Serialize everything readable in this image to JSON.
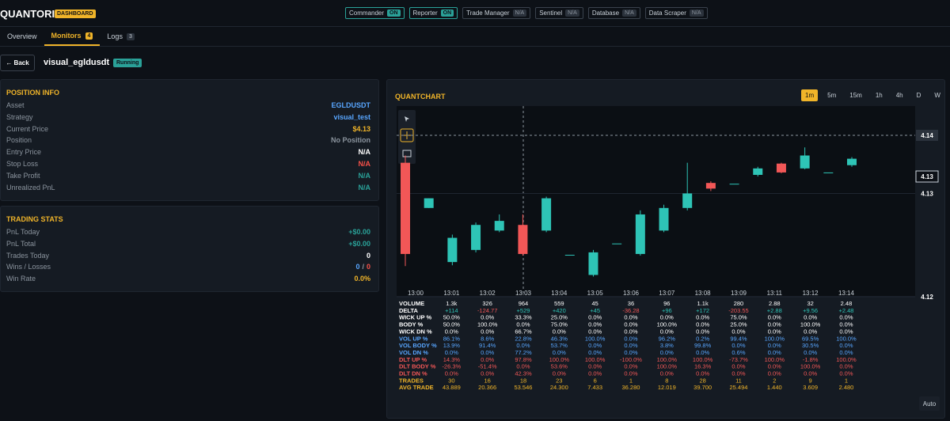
{
  "header": {
    "brand": "QUANTORIUS",
    "badge": "DASHBOARD",
    "services": [
      {
        "name": "Commander",
        "status": "ON"
      },
      {
        "name": "Reporter",
        "status": "ON"
      },
      {
        "name": "Trade Manager",
        "status": "N/A"
      },
      {
        "name": "Sentinel",
        "status": "N/A"
      },
      {
        "name": "Database",
        "status": "N/A"
      },
      {
        "name": "Data Scraper",
        "status": "N/A"
      }
    ]
  },
  "tabs": [
    {
      "label": "Overview"
    },
    {
      "label": "Monitors",
      "count": "4"
    },
    {
      "label": "Logs",
      "count": "3"
    }
  ],
  "toolbar": {
    "back": "Back",
    "monitor": "visual_egldusdt",
    "status": "Running"
  },
  "position_info": {
    "title": "POSITION INFO",
    "rows": [
      {
        "label": "Asset",
        "value": "EGLDUSDT"
      },
      {
        "label": "Strategy",
        "value": "visual_test"
      },
      {
        "label": "Current Price",
        "value": "$4.13"
      },
      {
        "label": "Position",
        "value": "No Position"
      },
      {
        "label": "Entry Price",
        "value": "N/A"
      },
      {
        "label": "Stop Loss",
        "value": "N/A"
      },
      {
        "label": "Take Profit",
        "value": "N/A"
      },
      {
        "label": "Unrealized PnL",
        "value": "N/A"
      }
    ]
  },
  "trading_stats": {
    "title": "TRADING STATS",
    "rows": [
      {
        "label": "PnL Today",
        "value": "+$0.00"
      },
      {
        "label": "PnL Total",
        "value": "+$0.00"
      },
      {
        "label": "Trades Today",
        "value": "0"
      },
      {
        "label": "Wins / Losses",
        "wins": "0",
        "sep": "/",
        "losses": "0"
      },
      {
        "label": "Win Rate",
        "value": "0.0%"
      }
    ]
  },
  "quantchart": {
    "title": "QUANTCHART",
    "timeframes": [
      "1m",
      "5m",
      "15m",
      "1h",
      "4h",
      "D",
      "W"
    ],
    "active_timeframe": 0,
    "price_ticks": [
      {
        "value": 4.14,
        "label": "4.14"
      },
      {
        "value": 4.1328,
        "label": "4.13"
      },
      {
        "value": 4.12,
        "label": "4.12"
      }
    ],
    "last_price": {
      "value": 4.1349,
      "label": "4.13"
    },
    "times": [
      "13:00",
      "13:01",
      "13:02",
      "13:03",
      "13:04",
      "13:05",
      "13:06",
      "13:07",
      "13:08",
      "13:09",
      "13:11",
      "13:12",
      "13:14"
    ],
    "candles": [
      {
        "o": 4.1366,
        "h": 4.1375,
        "l": 4.1238,
        "c": 4.1253
      },
      {
        "o": 4.131,
        "h": 4.1322,
        "l": 4.131,
        "c": 4.1322
      },
      {
        "o": 4.1243,
        "h": 4.1277,
        "l": 4.1239,
        "c": 4.1273
      },
      {
        "o": 4.1258,
        "h": 4.1292,
        "l": 4.1255,
        "c": 4.1289
      },
      {
        "o": 4.1282,
        "h": 4.1302,
        "l": 4.128,
        "c": 4.1294
      },
      {
        "o": 4.1289,
        "h": 4.1302,
        "l": 4.1251,
        "c": 4.1253
      },
      {
        "o": 4.1282,
        "h": 4.1324,
        "l": 4.128,
        "c": 4.1322
      },
      {
        "o": 4.1252,
        "h": 4.1252,
        "l": 4.1252,
        "c": 4.1252
      },
      {
        "o": 4.1227,
        "h": 4.1258,
        "l": 4.1225,
        "c": 4.1255
      },
      {
        "o": 4.1266,
        "h": 4.1266,
        "l": 4.1266,
        "c": 4.1266
      },
      {
        "o": 4.1253,
        "h": 4.1307,
        "l": 4.1251,
        "c": 4.1302
      },
      {
        "o": 4.1282,
        "h": 4.1314,
        "l": 4.128,
        "c": 4.131
      },
      {
        "o": 4.131,
        "h": 4.1366,
        "l": 4.1307,
        "c": 4.1328
      },
      {
        "o": 4.1341,
        "h": 4.1343,
        "l": 4.1331,
        "c": 4.1334
      },
      {
        "o": 4.134,
        "h": 4.134,
        "l": 4.134,
        "c": 4.134
      },
      {
        "o": 4.1351,
        "h": 4.1361,
        "l": 4.1349,
        "c": 4.1359
      },
      {
        "o": 4.1365,
        "h": 4.1366,
        "l": 4.1353,
        "c": 4.1354
      },
      {
        "o": 4.1359,
        "h": 4.1385,
        "l": 4.1358,
        "c": 4.1375
      },
      {
        "o": 4.1354,
        "h": 4.1354,
        "l": 4.1354,
        "c": 4.1354
      },
      {
        "o": 4.1363,
        "h": 4.1373,
        "l": 4.1361,
        "c": 4.1371
      }
    ],
    "table": [
      {
        "label": "VOLUME",
        "cells": [
          "1.3k",
          "326",
          "964",
          "559",
          "45",
          "36",
          "96",
          "1.1k",
          "280",
          "2.88",
          "32",
          "2.48"
        ]
      },
      {
        "label": "DELTA",
        "cells": [
          "+114",
          "-124.77",
          "+529",
          "+420",
          "+45",
          "-36.28",
          "+96",
          "+172",
          "-203.55",
          "+2.88",
          "+9.56",
          "+2.48"
        ]
      },
      {
        "label": "WICK UP %",
        "cells": [
          "50.0%",
          "0.0%",
          "33.3%",
          "25.0%",
          "0.0%",
          "0.0%",
          "0.0%",
          "0.0%",
          "75.0%",
          "0.0%",
          "0.0%",
          "0.0%"
        ]
      },
      {
        "label": "BODY %",
        "cells": [
          "50.0%",
          "100.0%",
          "0.0%",
          "75.0%",
          "0.0%",
          "0.0%",
          "100.0%",
          "0.0%",
          "25.0%",
          "0.0%",
          "100.0%",
          "0.0%"
        ]
      },
      {
        "label": "WICK DN %",
        "cells": [
          "0.0%",
          "0.0%",
          "66.7%",
          "0.0%",
          "0.0%",
          "0.0%",
          "0.0%",
          "0.0%",
          "0.0%",
          "0.0%",
          "0.0%",
          "0.0%"
        ]
      },
      {
        "label": "VOL UP %",
        "cells": [
          "86.1%",
          "8.6%",
          "22.8%",
          "46.3%",
          "100.0%",
          "0.0%",
          "96.2%",
          "0.2%",
          "99.4%",
          "100.0%",
          "69.5%",
          "100.0%"
        ]
      },
      {
        "label": "VOL BODY %",
        "cells": [
          "13.9%",
          "91.4%",
          "0.0%",
          "53.7%",
          "0.0%",
          "0.0%",
          "3.8%",
          "99.8%",
          "0.0%",
          "0.0%",
          "30.5%",
          "0.0%"
        ]
      },
      {
        "label": "VOL DN %",
        "cells": [
          "0.0%",
          "0.0%",
          "77.2%",
          "0.0%",
          "0.0%",
          "0.0%",
          "0.0%",
          "0.0%",
          "0.6%",
          "0.0%",
          "0.0%",
          "0.0%"
        ]
      },
      {
        "label": "DLT UP %",
        "cells": [
          "14.3%",
          "0.0%",
          "97.8%",
          "100.0%",
          "100.0%",
          "-100.0%",
          "100.0%",
          "100.0%",
          "-73.7%",
          "100.0%",
          "-1.8%",
          "100.0%"
        ]
      },
      {
        "label": "DLT BODY %",
        "cells": [
          "-26.3%",
          "-51.4%",
          "0.0%",
          "53.6%",
          "0.0%",
          "0.0%",
          "100.0%",
          "16.3%",
          "0.0%",
          "0.0%",
          "100.0%",
          "0.0%"
        ]
      },
      {
        "label": "DLT DN %",
        "cells": [
          "0.0%",
          "0.0%",
          "42.3%",
          "0.0%",
          "0.0%",
          "0.0%",
          "0.0%",
          "0.0%",
          "0.0%",
          "0.0%",
          "0.0%",
          "0.0%"
        ]
      },
      {
        "label": "TRADES",
        "cells": [
          "30",
          "16",
          "18",
          "23",
          "6",
          "1",
          "8",
          "28",
          "11",
          "2",
          "9",
          "1"
        ]
      },
      {
        "label": "AVG TRADE",
        "cells": [
          "43.889",
          "20.366",
          "53.546",
          "24.300",
          "7.433",
          "36.280",
          "12.019",
          "39.700",
          "25.494",
          "1.440",
          "3.609",
          "2.480"
        ]
      }
    ],
    "auto": "Auto"
  }
}
